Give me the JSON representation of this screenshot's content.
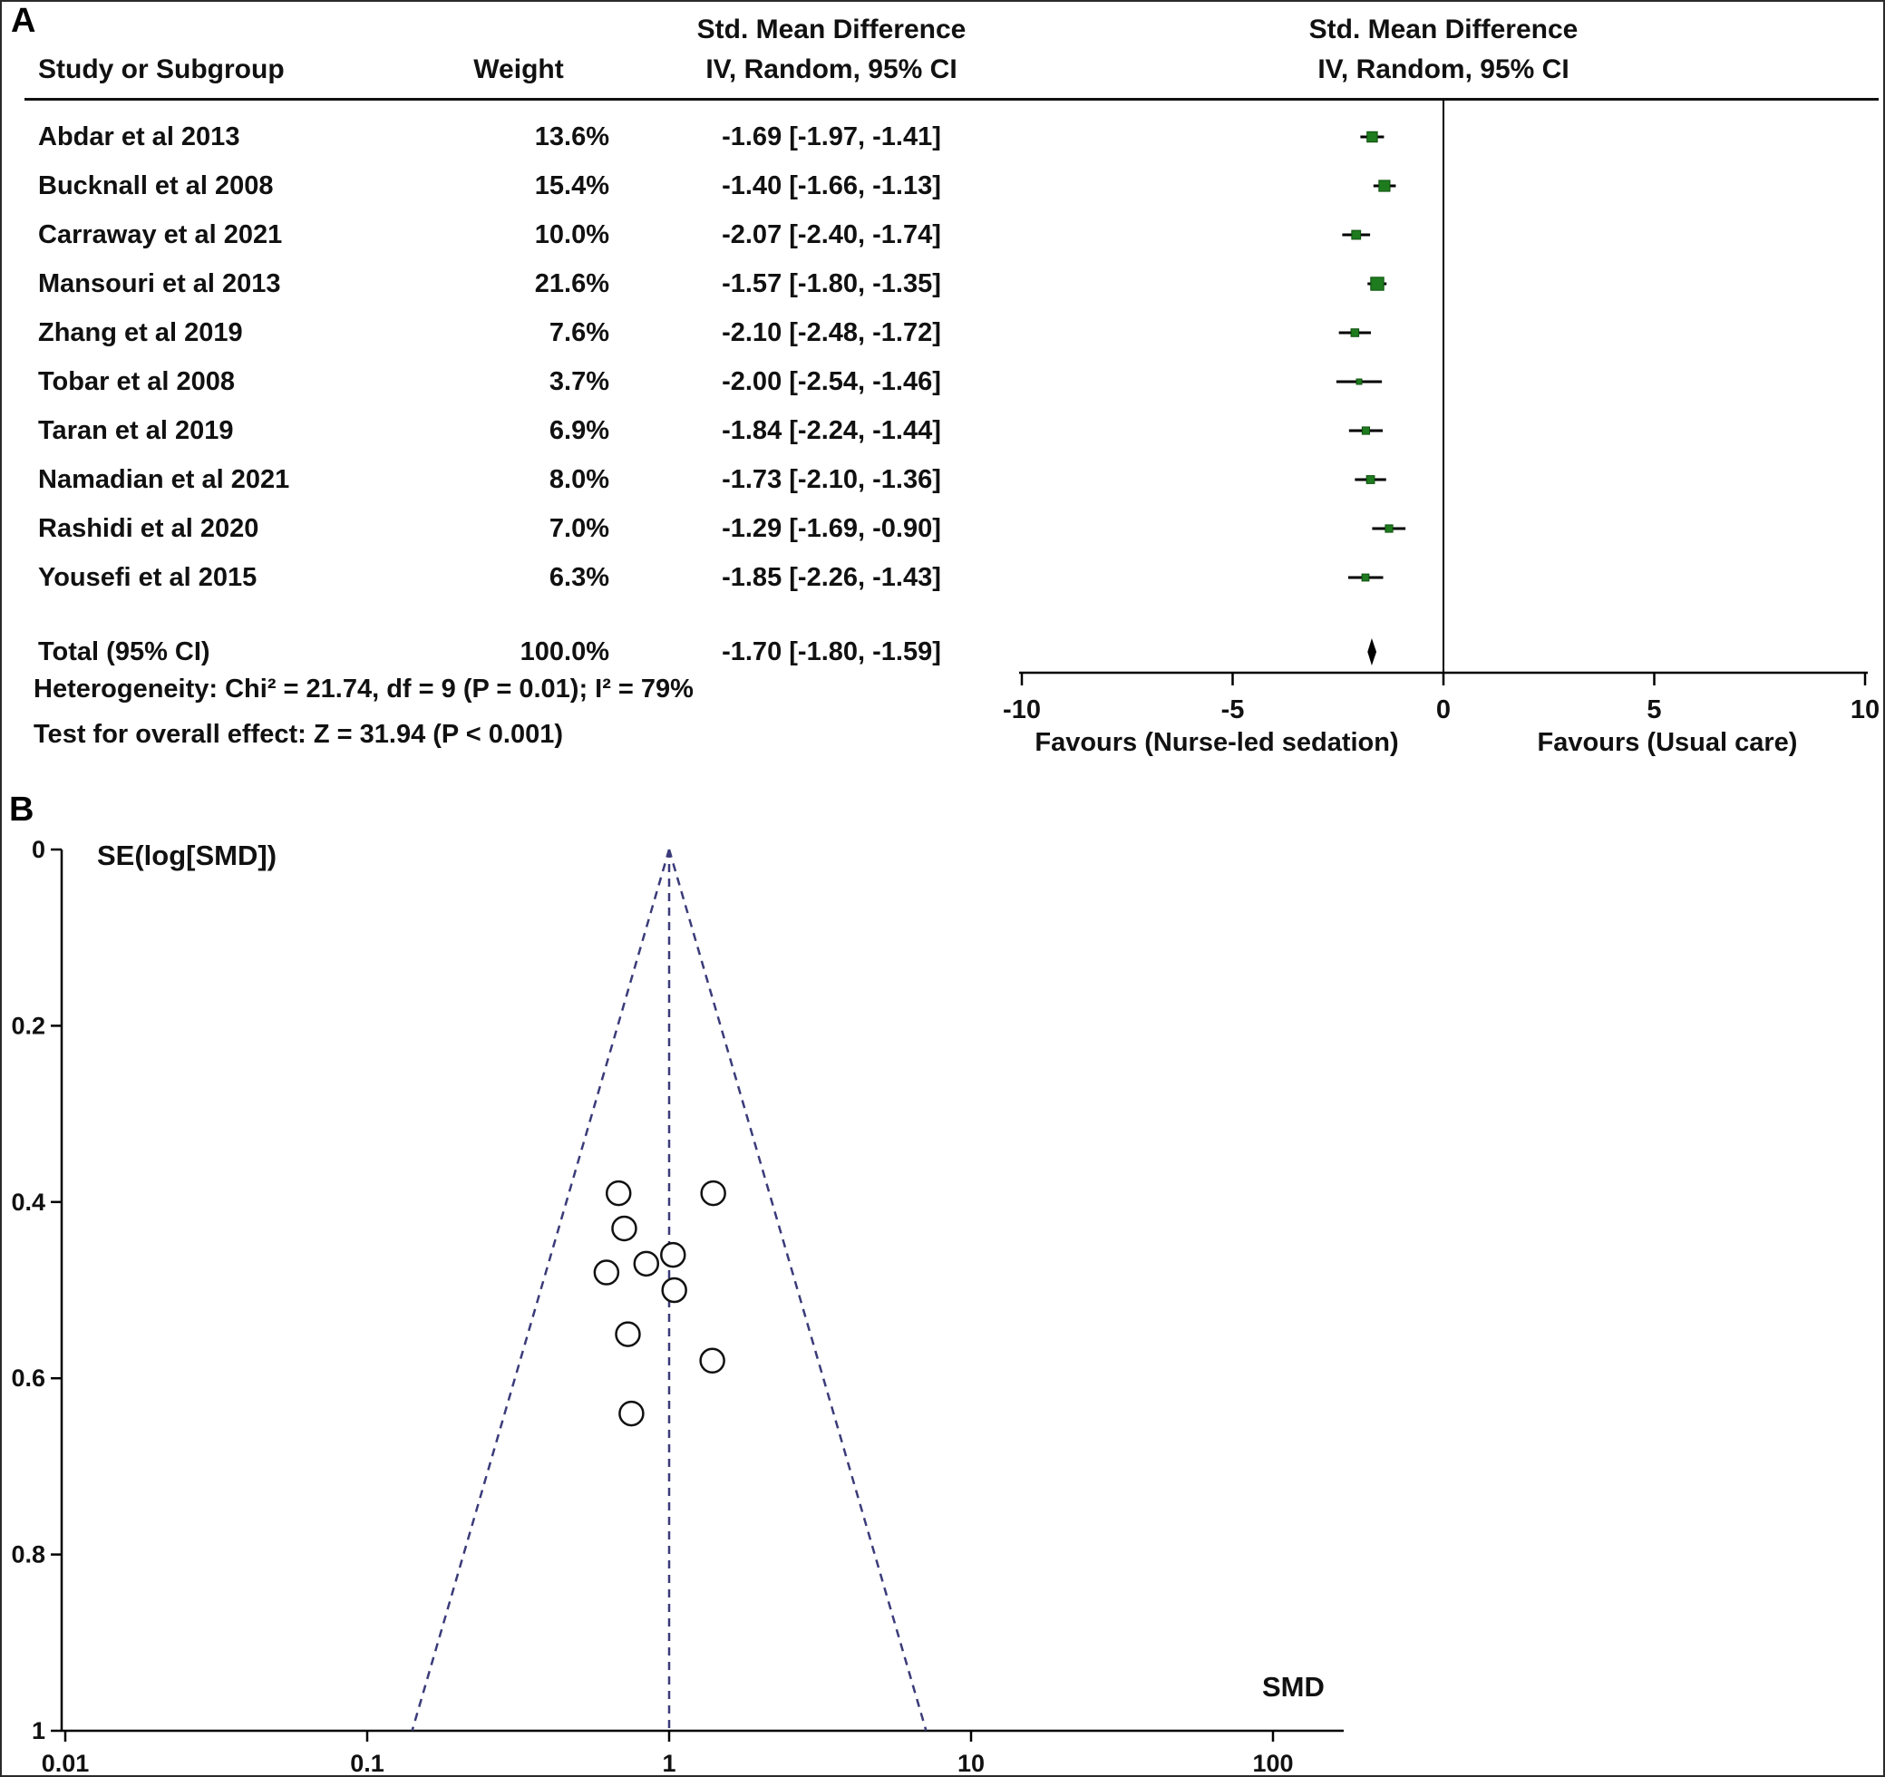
{
  "figure": {
    "panel_a_label": "A",
    "panel_b_label": "B"
  },
  "chart_data": [
    {
      "type": "forest",
      "panel": "A",
      "headers": {
        "study": "Study or Subgroup",
        "weight": "Weight",
        "smd_text_line1": "Std. Mean Difference",
        "smd_text_line2": "IV, Random, 95% CI",
        "smd_graph_line1": "Std. Mean Difference",
        "smd_graph_line2": "IV, Random, 95% CI"
      },
      "studies": [
        {
          "name": "Abdar et al 2013",
          "weight": 13.6,
          "weight_label": "13.6%",
          "smd": -1.69,
          "ci_low": -1.97,
          "ci_high": -1.41,
          "ci_label": "-1.69 [-1.97, -1.41]"
        },
        {
          "name": "Bucknall et al 2008",
          "weight": 15.4,
          "weight_label": "15.4%",
          "smd": -1.4,
          "ci_low": -1.66,
          "ci_high": -1.13,
          "ci_label": "-1.40 [-1.66, -1.13]"
        },
        {
          "name": "Carraway et al 2021",
          "weight": 10.0,
          "weight_label": "10.0%",
          "smd": -2.07,
          "ci_low": -2.4,
          "ci_high": -1.74,
          "ci_label": "-2.07 [-2.40, -1.74]"
        },
        {
          "name": "Mansouri et al 2013",
          "weight": 21.6,
          "weight_label": "21.6%",
          "smd": -1.57,
          "ci_low": -1.8,
          "ci_high": -1.35,
          "ci_label": "-1.57 [-1.80, -1.35]"
        },
        {
          "name": "Zhang et al 2019",
          "weight": 7.6,
          "weight_label": "7.6%",
          "smd": -2.1,
          "ci_low": -2.48,
          "ci_high": -1.72,
          "ci_label": "-2.10 [-2.48, -1.72]"
        },
        {
          "name": "Tobar et al 2008",
          "weight": 3.7,
          "weight_label": "3.7%",
          "smd": -2.0,
          "ci_low": -2.54,
          "ci_high": -1.46,
          "ci_label": "-2.00 [-2.54, -1.46]"
        },
        {
          "name": "Taran et al 2019",
          "weight": 6.9,
          "weight_label": "6.9%",
          "smd": -1.84,
          "ci_low": -2.24,
          "ci_high": -1.44,
          "ci_label": "-1.84 [-2.24, -1.44]"
        },
        {
          "name": "Namadian et al 2021",
          "weight": 8.0,
          "weight_label": "8.0%",
          "smd": -1.73,
          "ci_low": -2.1,
          "ci_high": -1.36,
          "ci_label": "-1.73 [-2.10, -1.36]"
        },
        {
          "name": "Rashidi et al 2020",
          "weight": 7.0,
          "weight_label": "7.0%",
          "smd": -1.29,
          "ci_low": -1.69,
          "ci_high": -0.9,
          "ci_label": "-1.29 [-1.69, -0.90]"
        },
        {
          "name": "Yousefi et al 2015",
          "weight": 6.3,
          "weight_label": "6.3%",
          "smd": -1.85,
          "ci_low": -2.26,
          "ci_high": -1.43,
          "ci_label": "-1.85 [-2.26, -1.43]"
        }
      ],
      "total": {
        "label": "Total (95% CI)",
        "weight_label": "100.0%",
        "smd": -1.7,
        "ci_low": -1.8,
        "ci_high": -1.59,
        "ci_label": "-1.70 [-1.80, -1.59]"
      },
      "heterogeneity": "Heterogeneity: Chi² = 21.74, df = 9 (P = 0.01); I² = 79%",
      "overall_effect": "Test for overall effect: Z = 31.94 (P < 0.001)",
      "axis": {
        "min": -10,
        "max": 10,
        "ticks": [
          -10,
          -5,
          0,
          5,
          10
        ],
        "tick_labels": [
          "-10",
          "-5",
          "0",
          "5",
          "10"
        ]
      },
      "favours_left": "Favours (Nurse-led sedation)",
      "favours_right": "Favours (Usual care)",
      "marker_color": "#1e7b1e",
      "marker_border_color": "#0d4f0d"
    },
    {
      "type": "scatter",
      "panel": "B",
      "ylabel": "SE(log[SMD])",
      "xlabel": "SMD",
      "x_scale": "log",
      "x_ticks": [
        0.01,
        0.1,
        1,
        10,
        100
      ],
      "x_tick_labels": [
        "0.01",
        "0.1",
        "1",
        "10",
        "100"
      ],
      "y_ticks": [
        0,
        0.2,
        0.4,
        0.6,
        0.8,
        1
      ],
      "y_tick_labels": [
        "0",
        "0.2",
        "0.4",
        "0.6",
        "0.8",
        "1"
      ],
      "ylim": [
        0,
        1
      ],
      "center_smd": 1,
      "pseudo_ci_z": 1.96,
      "line_color": "#3b3b7a",
      "points": [
        {
          "smd": 0.68,
          "se": 0.39
        },
        {
          "smd": 1.4,
          "se": 0.39
        },
        {
          "smd": 0.71,
          "se": 0.43
        },
        {
          "smd": 0.62,
          "se": 0.48
        },
        {
          "smd": 0.84,
          "se": 0.47
        },
        {
          "smd": 1.03,
          "se": 0.46
        },
        {
          "smd": 1.04,
          "se": 0.5
        },
        {
          "smd": 0.73,
          "se": 0.55
        },
        {
          "smd": 1.39,
          "se": 0.58
        },
        {
          "smd": 0.75,
          "se": 0.64
        }
      ]
    }
  ]
}
